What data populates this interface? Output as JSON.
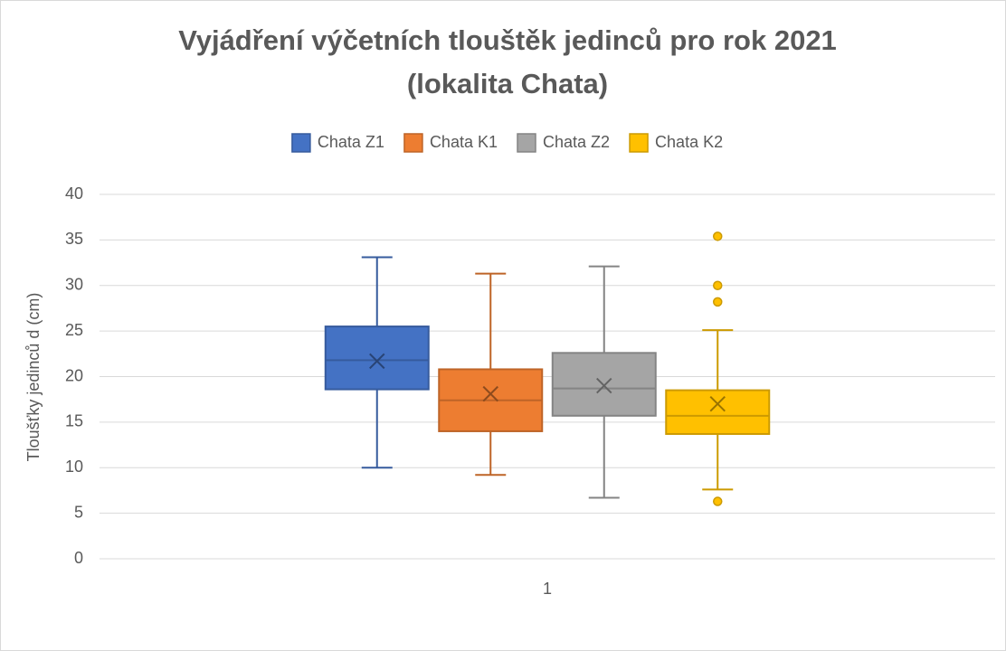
{
  "chart_data": {
    "type": "box",
    "title": [
      "Vyjádření výčetních tlouštěk jedinců pro rok 2021",
      "(lokalita Chata)"
    ],
    "y_label": "Tloušťky jedinců d (cm)",
    "categories": [
      "1"
    ],
    "ylim": [
      0,
      40
    ],
    "yticks": [
      0,
      5,
      10,
      15,
      20,
      25,
      30,
      35,
      40
    ],
    "grid": true,
    "legend": "top",
    "series": [
      {
        "name": "Chata Z1",
        "color": "#4472c4",
        "whisker_low": 10.0,
        "q1": 18.6,
        "median": 21.8,
        "q3": 25.5,
        "whisker_high": 33.1,
        "mean": 21.7,
        "outliers": []
      },
      {
        "name": "Chata K1",
        "color": "#ed7d31",
        "whisker_low": 9.2,
        "q1": 14.0,
        "median": 17.4,
        "q3": 20.8,
        "whisker_high": 31.3,
        "mean": 18.1,
        "outliers": []
      },
      {
        "name": "Chata Z2",
        "color": "#a5a5a5",
        "whisker_low": 6.7,
        "q1": 15.7,
        "median": 18.7,
        "q3": 22.6,
        "whisker_high": 32.1,
        "mean": 19.0,
        "outliers": []
      },
      {
        "name": "Chata K2",
        "color": "#ffc000",
        "whisker_low": 7.6,
        "q1": 13.7,
        "median": 15.7,
        "q3": 18.5,
        "whisker_high": 25.1,
        "mean": 17.0,
        "outliers": [
          35.4,
          30.0,
          28.2,
          6.3
        ]
      }
    ]
  }
}
